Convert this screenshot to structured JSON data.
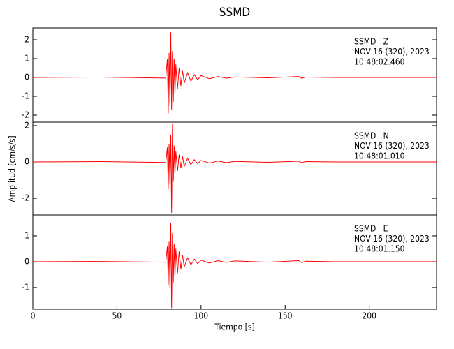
{
  "chart_data": [
    {
      "type": "line",
      "title": "SSMD",
      "x": [
        0,
        40,
        79,
        80,
        80.5,
        81,
        81.5,
        82,
        82.5,
        83,
        83.5,
        84,
        84.5,
        85,
        86,
        87,
        88,
        89,
        90,
        92,
        94,
        96,
        98,
        100,
        105,
        110,
        115,
        120,
        140,
        158,
        160,
        162,
        180,
        240
      ],
      "xlim": [
        0,
        240
      ],
      "ylim": [
        -2.37,
        2.63
      ],
      "yticks": [
        -2,
        -1,
        0,
        1,
        2
      ],
      "series": [
        {
          "color": "#ff0000",
          "values": [
            0,
            0.02,
            -0.03,
            1.0,
            -1.9,
            1.3,
            -1.5,
            2.4,
            -1.7,
            1.4,
            -1.3,
            1.0,
            -0.9,
            0.7,
            -0.6,
            0.5,
            -0.45,
            0.35,
            -0.3,
            0.25,
            -0.2,
            0.15,
            -0.12,
            0.1,
            -0.07,
            0.05,
            -0.04,
            0.03,
            -0.02,
            0.05,
            -0.05,
            0.02,
            0,
            0
          ]
        }
      ],
      "annotations": [
        "SSMD   Z",
        "NOV 16 (320), 2023",
        "10:48:02.460"
      ]
    },
    {
      "type": "line",
      "y_label": "Amplitud [cm/s/s]",
      "x": [
        0,
        40,
        79,
        80,
        80.5,
        81,
        81.5,
        82,
        82.5,
        83,
        83.5,
        84,
        84.5,
        85,
        86,
        87,
        88,
        89,
        90,
        92,
        94,
        96,
        98,
        100,
        105,
        110,
        115,
        120,
        140,
        158,
        160,
        162,
        180,
        240
      ],
      "xlim": [
        0,
        240
      ],
      "ylim": [
        -2.92,
        2.19
      ],
      "yticks": [
        -2,
        0,
        2
      ],
      "series": [
        {
          "color": "#ff0000",
          "values": [
            0,
            0.02,
            -0.03,
            0.8,
            -1.5,
            1.0,
            -1.2,
            1.5,
            -2.8,
            2.1,
            -1.1,
            0.9,
            -0.7,
            0.6,
            -0.5,
            0.4,
            -0.35,
            0.3,
            -0.25,
            0.2,
            -0.15,
            0.12,
            -0.1,
            0.08,
            -0.06,
            0.05,
            -0.04,
            0.03,
            -0.02,
            0.04,
            -0.04,
            0.02,
            0,
            0
          ]
        }
      ],
      "annotations": [
        "SSMD   N",
        "NOV 16 (320), 2023",
        "10:48:01.010"
      ]
    },
    {
      "type": "line",
      "x_label": "Tiempo [s]",
      "x": [
        0,
        40,
        79,
        80,
        80.5,
        81,
        81.5,
        82,
        82.5,
        83,
        83.5,
        84,
        84.5,
        85,
        86,
        87,
        88,
        89,
        90,
        92,
        94,
        96,
        98,
        100,
        105,
        110,
        115,
        120,
        140,
        158,
        160,
        162,
        180,
        240
      ],
      "xlim": [
        0,
        240
      ],
      "xticks": [
        0,
        50,
        100,
        150,
        200
      ],
      "ylim": [
        -1.84,
        1.81
      ],
      "yticks": [
        -1,
        0,
        1
      ],
      "series": [
        {
          "color": "#ff0000",
          "values": [
            0,
            0.01,
            -0.02,
            0.6,
            -0.9,
            0.8,
            -1.0,
            1.5,
            -1.8,
            1.1,
            -0.8,
            0.7,
            -0.6,
            0.5,
            -0.45,
            0.4,
            -0.3,
            0.25,
            -0.2,
            0.15,
            -0.12,
            0.1,
            -0.08,
            0.06,
            -0.05,
            0.04,
            -0.03,
            0.03,
            -0.02,
            0.04,
            -0.04,
            0.02,
            0,
            0
          ]
        }
      ],
      "annotations": [
        "SSMD   E",
        "NOV 16 (320), 2023",
        "10:48:01.150"
      ]
    }
  ]
}
